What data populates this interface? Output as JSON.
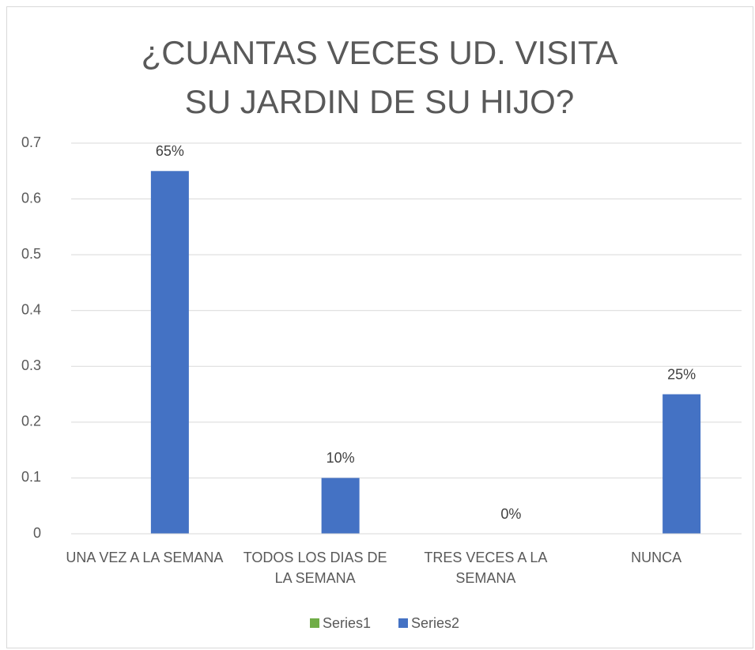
{
  "chart_data": {
    "type": "bar",
    "title": "¿CUANTAS VECES UD. VISITA SU JARDIN DE SU HIJO?",
    "categories": [
      "UNA VEZ A LA SEMANA",
      "TODOS LOS DIAS DE LA SEMANA",
      "TRES VECES A LA SEMANA",
      "NUNCA"
    ],
    "series": [
      {
        "name": "Series1",
        "color": "#70ad47",
        "values": [
          null,
          null,
          null,
          null
        ]
      },
      {
        "name": "Series2",
        "color": "#4472c4",
        "values": [
          0.65,
          0.1,
          0,
          0.25
        ],
        "value_labels": [
          "65%",
          "10%",
          "0%",
          "25%"
        ]
      }
    ],
    "ylim": [
      0,
      0.7
    ],
    "yticks": [
      0,
      0.1,
      0.2,
      0.3,
      0.4,
      0.5,
      0.6,
      0.7
    ],
    "grid": true,
    "legend": "bottom"
  }
}
